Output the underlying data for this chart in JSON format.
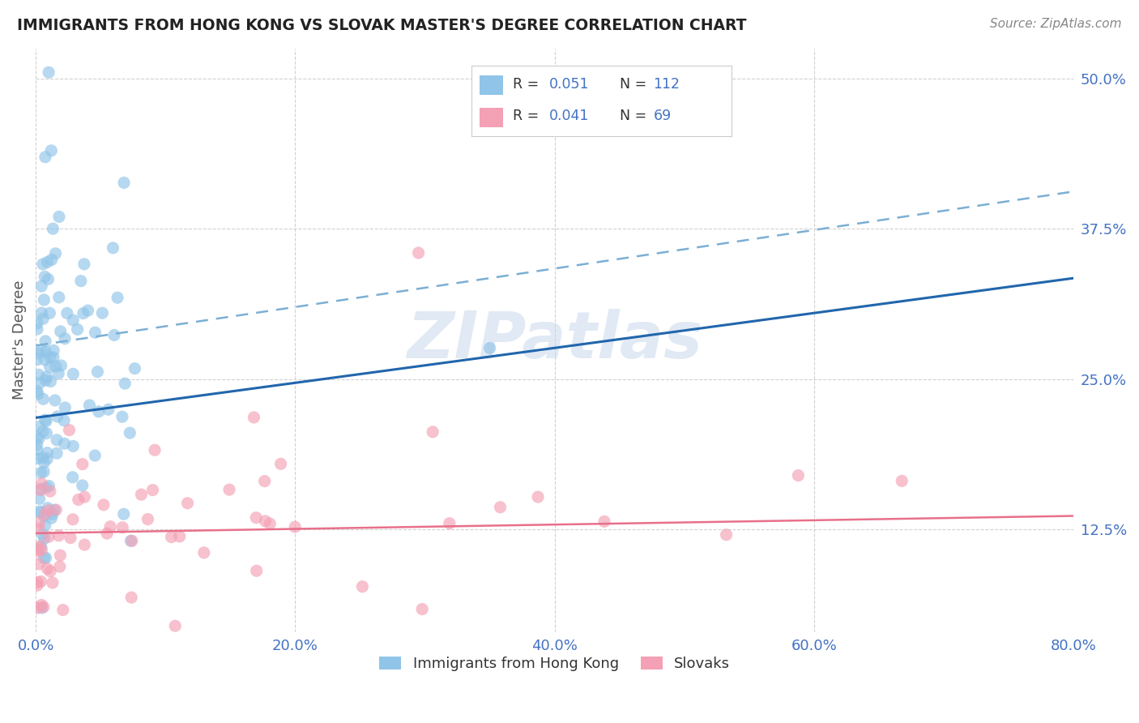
{
  "title": "IMMIGRANTS FROM HONG KONG VS SLOVAK MASTER'S DEGREE CORRELATION CHART",
  "source": "Source: ZipAtlas.com",
  "ylabel": "Master's Degree",
  "xmin": 0.0,
  "xmax": 0.8,
  "ymin": 0.04,
  "ymax": 0.525,
  "yticks": [
    0.125,
    0.25,
    0.375,
    0.5
  ],
  "ytick_labels": [
    "12.5%",
    "25.0%",
    "37.5%",
    "50.0%"
  ],
  "xticks": [
    0.0,
    0.2,
    0.4,
    0.6,
    0.8
  ],
  "xtick_labels": [
    "0.0%",
    "20.0%",
    "40.0%",
    "60.0%",
    "80.0%"
  ],
  "blue_scatter_color": "#90c4e8",
  "pink_scatter_color": "#f4a0b5",
  "blue_line_color": "#2166ac",
  "pink_line_color": "#e8708a",
  "blue_dashed_color": "#7bafd4",
  "label_color": "#4472c4",
  "source_color": "#888888",
  "title_color": "#222222",
  "bottom_legend1": "Immigrants from Hong Kong",
  "bottom_legend2": "Slovaks",
  "watermark": "ZIPatlas",
  "blue_line_intercept": 0.218,
  "blue_line_slope": 0.145,
  "blue_dashed_intercept": 0.278,
  "blue_dashed_slope": 0.16,
  "pink_line_intercept": 0.122,
  "pink_line_slope": 0.018
}
